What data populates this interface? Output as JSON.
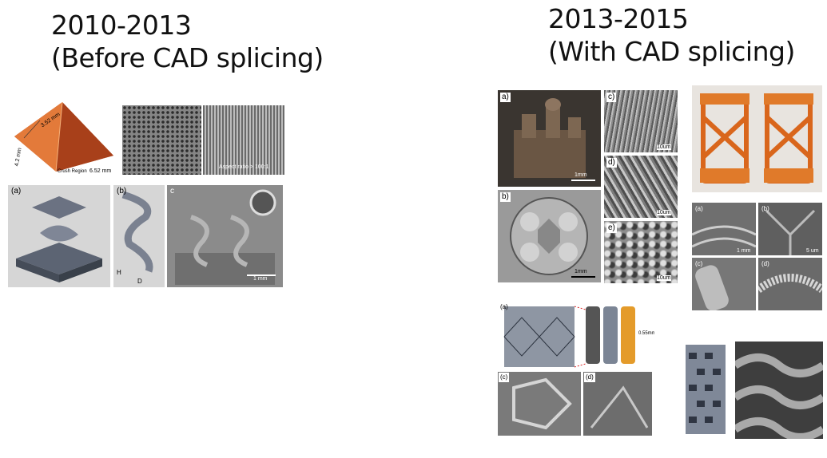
{
  "left": {
    "period": "2010-2013",
    "subtitle": "(Before CAD splicing)",
    "top_figure": {
      "pyramid_labels": [
        "3.52 mm",
        "4.2 mm",
        "Crush Region",
        "6.52 mm"
      ],
      "sem_caption": "Aspect ratio > 100:1"
    },
    "bottom_figure": {
      "panel_labels": [
        "(a)",
        "(b)",
        "c"
      ],
      "helix_labels": [
        "H",
        "D"
      ],
      "scale": "1 mm"
    }
  },
  "right": {
    "period": "2013-2015",
    "subtitle": "(With CAD splicing)",
    "grid_figure": {
      "panel_labels": [
        "a)",
        "b)",
        "c)",
        "d)",
        "e)"
      ],
      "scales": [
        "1mm",
        "1mm",
        "10um",
        "10um",
        "10um"
      ]
    },
    "stent_figure": {
      "panel_labels": [
        "(a)",
        "(b)",
        "(c)",
        "(d)"
      ],
      "scales": [
        "1 mm",
        "5 um"
      ]
    },
    "bottom_figure": {
      "panel_labels": [
        "(a)",
        "(c)",
        "(d)"
      ],
      "dimension": "0.55mm"
    }
  },
  "colors": {
    "resin_orange": "#d9661c",
    "sem_gray": "#7d7d7d",
    "cad_gray": "#d6d6d6"
  }
}
